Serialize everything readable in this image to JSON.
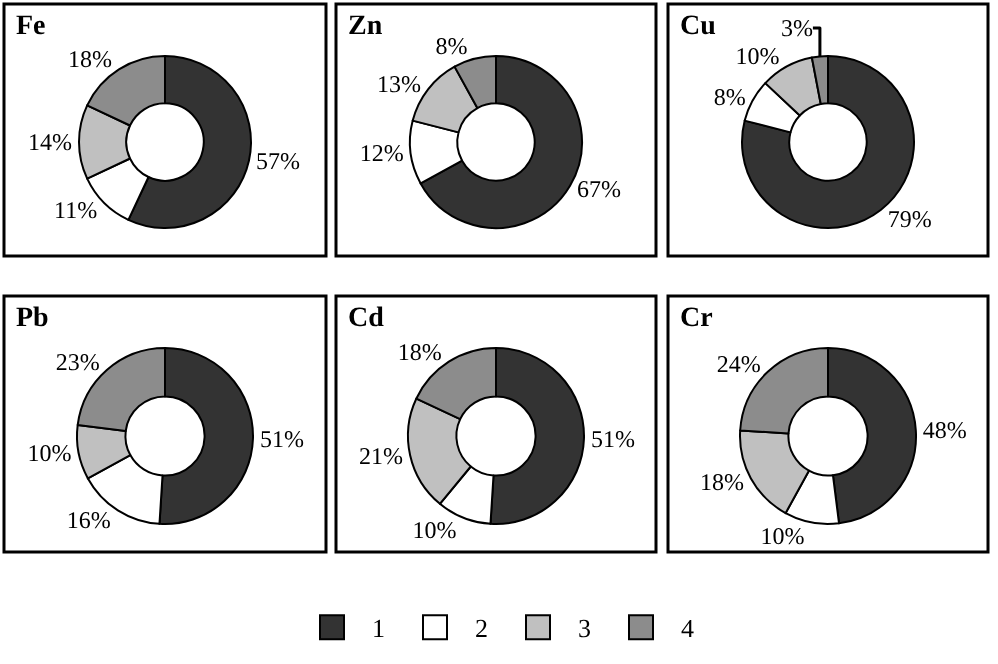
{
  "chart_data": [
    {
      "type": "donut",
      "title": "Fe",
      "categories": [
        "1",
        "2",
        "3",
        "4"
      ],
      "values": [
        57,
        11,
        14,
        18
      ],
      "value_labels": [
        "57%",
        "11%",
        "14%",
        "18%"
      ],
      "colors": [
        "#333333",
        "#ffffff",
        "#c0c0c0",
        "#8c8c8c"
      ],
      "legend": "bottom"
    },
    {
      "type": "donut",
      "title": "Zn",
      "values": [
        67,
        12,
        13,
        8
      ],
      "value_labels": [
        "67%",
        "12%",
        "13%",
        "8%"
      ],
      "colors": [
        "#333333",
        "#ffffff",
        "#c0c0c0",
        "#8c8c8c"
      ]
    },
    {
      "type": "donut",
      "title": "Cu",
      "values": [
        79,
        8,
        10,
        3
      ],
      "value_labels": [
        "79%",
        "8%",
        "10%",
        "3%"
      ],
      "colors": [
        "#333333",
        "#ffffff",
        "#c0c0c0",
        "#8c8c8c"
      ]
    },
    {
      "type": "donut",
      "title": "Pb",
      "values": [
        51,
        16,
        10,
        23
      ],
      "value_labels": [
        "51%",
        "16%",
        "10%",
        "23%"
      ],
      "colors": [
        "#333333",
        "#ffffff",
        "#c0c0c0",
        "#8c8c8c"
      ]
    },
    {
      "type": "donut",
      "title": "Cd",
      "values": [
        51,
        10,
        21,
        18
      ],
      "value_labels": [
        "51%",
        "10%",
        "21%",
        "18%"
      ],
      "colors": [
        "#333333",
        "#ffffff",
        "#c0c0c0",
        "#8c8c8c"
      ]
    },
    {
      "type": "donut",
      "title": "Cr",
      "values": [
        48,
        10,
        18,
        24
      ],
      "value_labels": [
        "48%",
        "10%",
        "18%",
        "24%"
      ],
      "colors": [
        "#333333",
        "#ffffff",
        "#c0c0c0",
        "#8c8c8c"
      ]
    }
  ]
}
